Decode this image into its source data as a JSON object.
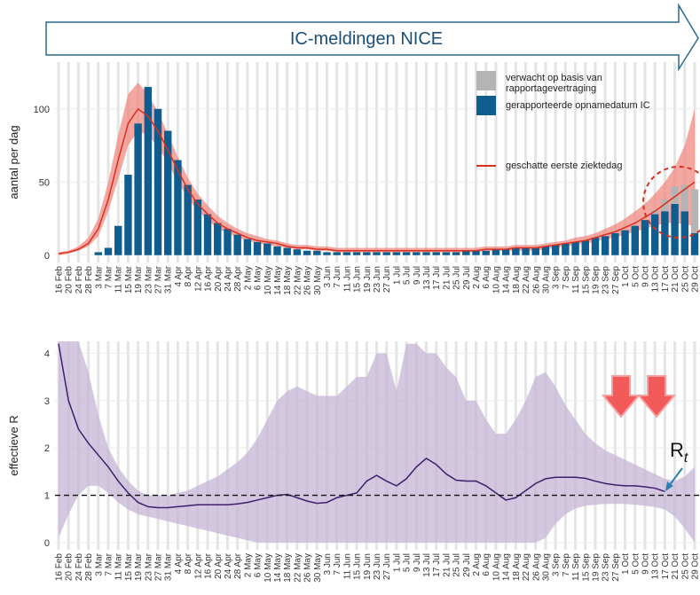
{
  "banner": "IC-meldingen NICE",
  "chart_data": [
    {
      "type": "bar",
      "ylabel": "aantal per dag",
      "categories": [
        "16 Feb",
        "20 Feb",
        "24 Feb",
        "28 Feb",
        "3 Mar",
        "7 Mar",
        "11 Mar",
        "15 Mar",
        "19 Mar",
        "23 Mar",
        "27 Mar",
        "31 Mar",
        "4 Apr",
        "8 Apr",
        "12 Apr",
        "16 Apr",
        "20 Apr",
        "24 Apr",
        "28 Apr",
        "2 May",
        "6 May",
        "10 May",
        "14 May",
        "18 May",
        "22 May",
        "26 May",
        "30 May",
        "3 Jun",
        "7 Jun",
        "11 Jun",
        "15 Jun",
        "19 Jun",
        "23 Jun",
        "27 Jun",
        "1 Jul",
        "5 Jul",
        "9 Jul",
        "13 Jul",
        "17 Jul",
        "21 Jul",
        "25 Jul",
        "29 Jul",
        "2 Aug",
        "6 Aug",
        "10 Aug",
        "14 Aug",
        "18 Aug",
        "22 Aug",
        "26 Aug",
        "30 Aug",
        "3 Sep",
        "7 Sep",
        "11 Sep",
        "15 Sep",
        "19 Sep",
        "23 Sep",
        "27 Sep",
        "1 Oct",
        "5 Oct",
        "9 Oct",
        "13 Oct",
        "17 Oct",
        "21 Oct",
        "25 Oct",
        "29 Oct"
      ],
      "ylim": [
        -5,
        132
      ],
      "yticks": [
        0,
        50,
        100
      ],
      "grid": true,
      "series": [
        {
          "name": "verwacht op basis van rapportagevertraging",
          "color": "#b4b4b4",
          "values": [
            0,
            0,
            0,
            0,
            0,
            0,
            0,
            0,
            0,
            0,
            0,
            0,
            0,
            0,
            0,
            0,
            0,
            0,
            0,
            0,
            0,
            0,
            0,
            0,
            0,
            0,
            0,
            0,
            0,
            0,
            0,
            0,
            0,
            0,
            0,
            0,
            0,
            0,
            0,
            0,
            0,
            0,
            0,
            0,
            0,
            0,
            0,
            0,
            0,
            0,
            0,
            0,
            0,
            0,
            0,
            0,
            0,
            0,
            0,
            0,
            3,
            8,
            12,
            18,
            30
          ]
        },
        {
          "name": "gerapporteerde opnamedatum IC",
          "color": "#0e5d8e",
          "values": [
            0,
            0,
            0,
            0,
            2,
            5,
            20,
            55,
            90,
            115,
            100,
            85,
            65,
            48,
            38,
            28,
            22,
            18,
            14,
            11,
            9,
            8,
            6,
            5,
            4,
            3,
            3,
            2,
            2,
            2,
            2,
            2,
            2,
            2,
            2,
            2,
            2,
            2,
            2,
            2,
            2,
            3,
            3,
            3,
            4,
            4,
            5,
            5,
            5,
            6,
            7,
            8,
            9,
            10,
            12,
            13,
            15,
            17,
            20,
            24,
            28,
            30,
            35,
            30,
            15
          ]
        },
        {
          "name": "geschatte eerste ziektedag",
          "type": "line",
          "color": "#d7301f",
          "band_color": "#f08a80",
          "values": [
            1,
            2,
            4,
            8,
            18,
            38,
            65,
            90,
            100,
            95,
            85,
            72,
            58,
            45,
            35,
            28,
            22,
            18,
            15,
            12,
            10,
            9,
            8,
            6,
            5,
            5,
            4,
            4,
            3,
            3,
            3,
            3,
            3,
            3,
            3,
            3,
            3,
            3,
            3,
            3,
            3,
            3,
            3,
            4,
            4,
            4,
            5,
            5,
            5,
            6,
            7,
            8,
            9,
            10,
            12,
            14,
            16,
            19,
            22,
            26,
            30,
            35,
            40,
            45,
            50
          ],
          "upper": [
            2,
            3,
            6,
            12,
            25,
            50,
            82,
            110,
            118,
            110,
            98,
            83,
            67,
            53,
            42,
            34,
            27,
            22,
            18,
            15,
            13,
            11,
            10,
            8,
            7,
            7,
            6,
            6,
            5,
            5,
            5,
            5,
            5,
            5,
            5,
            5,
            5,
            5,
            5,
            5,
            5,
            5,
            5,
            6,
            6,
            6,
            7,
            7,
            7,
            8,
            9,
            10,
            12,
            13,
            15,
            18,
            21,
            25,
            30,
            35,
            42,
            50,
            60,
            75,
            100
          ],
          "lower": [
            0,
            1,
            3,
            6,
            13,
            30,
            52,
            75,
            85,
            82,
            74,
            63,
            50,
            39,
            30,
            24,
            18,
            15,
            12,
            10,
            8,
            7,
            6,
            5,
            4,
            4,
            3,
            3,
            2,
            2,
            2,
            2,
            2,
            2,
            2,
            2,
            2,
            2,
            2,
            2,
            2,
            2,
            2,
            3,
            3,
            3,
            3,
            3,
            3,
            4,
            5,
            6,
            7,
            8,
            9,
            11,
            12,
            14,
            16,
            18,
            20,
            22,
            22,
            21,
            20
          ]
        }
      ]
    },
    {
      "type": "line",
      "ylabel": "effectieve R",
      "categories": [
        "16 Feb",
        "20 Feb",
        "24 Feb",
        "28 Feb",
        "3 Mar",
        "7 Mar",
        "11 Mar",
        "15 Mar",
        "19 Mar",
        "23 Mar",
        "27 Mar",
        "31 Mar",
        "4 Apr",
        "8 Apr",
        "12 Apr",
        "16 Apr",
        "20 Apr",
        "24 Apr",
        "28 Apr",
        "2 May",
        "6 May",
        "10 May",
        "14 May",
        "18 May",
        "22 May",
        "26 May",
        "30 May",
        "3 Jun",
        "7 Jun",
        "11 Jun",
        "15 Jun",
        "19 Jun",
        "23 Jun",
        "27 Jun",
        "1 Jul",
        "5 Jul",
        "9 Jul",
        "13 Jul",
        "17 Jul",
        "21 Jul",
        "25 Jul",
        "29 Jul",
        "2 Aug",
        "6 Aug",
        "10 Aug",
        "14 Aug",
        "18 Aug",
        "22 Aug",
        "26 Aug",
        "30 Aug",
        "3 Sep",
        "7 Sep",
        "11 Sep",
        "15 Sep",
        "19 Sep",
        "23 Sep",
        "27 Sep",
        "1 Oct",
        "5 Oct",
        "9 Oct",
        "13 Oct",
        "17 Oct",
        "21 Oct",
        "25 Oct",
        "29 Oct"
      ],
      "ylim": [
        -0.15,
        4.25
      ],
      "yticks": [
        0,
        1,
        2,
        3,
        4
      ],
      "grid": true,
      "reference_line": 1,
      "annotation": "R",
      "annotation_sub": "t",
      "series": [
        {
          "color": "#3d1f6b",
          "band_color": "#c5b5d5",
          "values": [
            4.2,
            3.0,
            2.4,
            2.1,
            1.85,
            1.6,
            1.3,
            1.05,
            0.85,
            0.76,
            0.74,
            0.74,
            0.76,
            0.78,
            0.8,
            0.8,
            0.8,
            0.8,
            0.82,
            0.85,
            0.9,
            0.95,
            1.0,
            1.02,
            0.95,
            0.88,
            0.83,
            0.85,
            0.95,
            1.0,
            1.05,
            1.3,
            1.42,
            1.3,
            1.2,
            1.35,
            1.6,
            1.78,
            1.65,
            1.45,
            1.32,
            1.3,
            1.3,
            1.2,
            1.05,
            0.9,
            0.95,
            1.1,
            1.25,
            1.35,
            1.38,
            1.38,
            1.38,
            1.36,
            1.3,
            1.25,
            1.22,
            1.2,
            1.2,
            1.18,
            1.15,
            1.08,
            null,
            null,
            null
          ],
          "upper": [
            4.25,
            4.25,
            4.25,
            3.6,
            2.7,
            2.0,
            1.6,
            1.3,
            1.1,
            1.0,
            1.0,
            1.0,
            1.05,
            1.1,
            1.2,
            1.3,
            1.4,
            1.55,
            1.7,
            1.9,
            2.2,
            2.6,
            3.0,
            3.2,
            3.3,
            3.2,
            3.1,
            3.1,
            3.1,
            3.3,
            3.5,
            3.5,
            4.0,
            4.0,
            3.2,
            4.2,
            4.2,
            4.0,
            4.0,
            3.7,
            3.5,
            3.0,
            3.0,
            2.6,
            2.3,
            2.3,
            2.6,
            3.0,
            3.5,
            3.6,
            3.3,
            2.9,
            2.6,
            2.3,
            2.1,
            1.95,
            1.85,
            1.75,
            1.65,
            1.55,
            1.45,
            1.35,
            1.3,
            1.4,
            1.6
          ],
          "lower": [
            0.1,
            0.6,
            1.0,
            1.2,
            1.2,
            1.05,
            0.85,
            0.7,
            0.6,
            0.55,
            0.5,
            0.45,
            0.4,
            0.35,
            0.3,
            0.25,
            0.2,
            0.15,
            0.1,
            0.05,
            0,
            0,
            0,
            0,
            0,
            0,
            0,
            0,
            0,
            0,
            0,
            0,
            0,
            0,
            0,
            0,
            0,
            0,
            0,
            0,
            0,
            0,
            0,
            0,
            0,
            0,
            0,
            0,
            0,
            0.1,
            0.4,
            0.6,
            0.72,
            0.78,
            0.8,
            0.82,
            0.82,
            0.82,
            0.8,
            0.78,
            0.75,
            0.7,
            0.55,
            0.3,
            0
          ]
        }
      ]
    }
  ]
}
